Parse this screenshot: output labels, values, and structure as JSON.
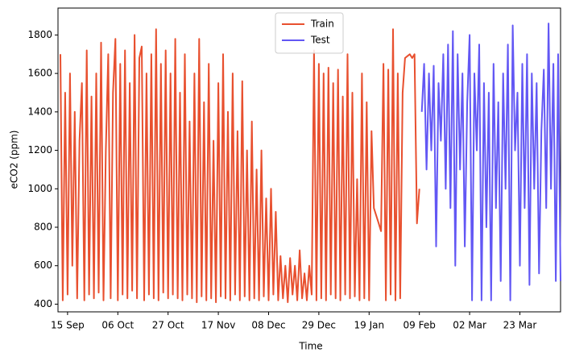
{
  "chart_data": {
    "type": "line",
    "xlabel": "Time",
    "ylabel": "eCO2 (ppm)",
    "xlim": [
      "11 Sep",
      "09 Apr"
    ],
    "xticks": [
      "15 Sep",
      "06 Oct",
      "27 Oct",
      "17 Nov",
      "08 Dec",
      "29 Dec",
      "19 Jan",
      "09 Feb",
      "02 Mar",
      "23 Mar"
    ],
    "ylim": [
      360,
      1940
    ],
    "yticks": [
      400,
      600,
      800,
      1000,
      1200,
      1400,
      1600,
      1800
    ],
    "grid": false,
    "legend": "upper center",
    "series": [
      {
        "name": "Train",
        "color": "#e8502f",
        "x": [
          "12 Sep",
          "13 Sep",
          "14 Sep",
          "15 Sep",
          "16 Sep",
          "17 Sep",
          "18 Sep",
          "19 Sep",
          "20 Sep",
          "21 Sep",
          "22 Sep",
          "23 Sep",
          "24 Sep",
          "25 Sep",
          "26 Sep",
          "27 Sep",
          "28 Sep",
          "29 Sep",
          "30 Sep",
          "01 Oct",
          "02 Oct",
          "03 Oct",
          "04 Oct",
          "05 Oct",
          "06 Oct",
          "07 Oct",
          "08 Oct",
          "09 Oct",
          "10 Oct",
          "11 Oct",
          "12 Oct",
          "13 Oct",
          "14 Oct",
          "15 Oct",
          "16 Oct",
          "17 Oct",
          "18 Oct",
          "19 Oct",
          "20 Oct",
          "21 Oct",
          "22 Oct",
          "23 Oct",
          "24 Oct",
          "25 Oct",
          "26 Oct",
          "27 Oct",
          "28 Oct",
          "29 Oct",
          "30 Oct",
          "31 Oct",
          "01 Nov",
          "02 Nov",
          "03 Nov",
          "04 Nov",
          "05 Nov",
          "06 Nov",
          "07 Nov",
          "08 Nov",
          "09 Nov",
          "10 Nov",
          "11 Nov",
          "12 Nov",
          "13 Nov",
          "14 Nov",
          "15 Nov",
          "16 Nov",
          "17 Nov",
          "18 Nov",
          "19 Nov",
          "20 Nov",
          "21 Nov",
          "22 Nov",
          "23 Nov",
          "24 Nov",
          "25 Nov",
          "26 Nov",
          "27 Nov",
          "28 Nov",
          "29 Nov",
          "30 Nov",
          "01 Dec",
          "02 Dec",
          "03 Dec",
          "04 Dec",
          "05 Dec",
          "06 Dec",
          "07 Dec",
          "08 Dec",
          "09 Dec",
          "10 Dec",
          "11 Dec",
          "12 Dec",
          "13 Dec",
          "14 Dec",
          "15 Dec",
          "16 Dec",
          "17 Dec",
          "18 Dec",
          "19 Dec",
          "20 Dec",
          "21 Dec",
          "22 Dec",
          "23 Dec",
          "24 Dec",
          "25 Dec",
          "26 Dec",
          "27 Dec",
          "28 Dec",
          "29 Dec",
          "30 Dec",
          "31 Dec",
          "01 Jan",
          "02 Jan",
          "03 Jan",
          "04 Jan",
          "05 Jan",
          "06 Jan",
          "07 Jan",
          "08 Jan",
          "09 Jan",
          "10 Jan",
          "11 Jan",
          "12 Jan",
          "13 Jan",
          "14 Jan",
          "15 Jan",
          "16 Jan",
          "17 Jan",
          "18 Jan",
          "19 Jan",
          "20 Jan",
          "21 Jan",
          "22 Jan",
          "23 Jan",
          "24 Jan",
          "25 Jan",
          "26 Jan",
          "27 Jan",
          "28 Jan",
          "29 Jan",
          "30 Jan",
          "31 Jan",
          "01 Feb",
          "02 Feb",
          "03 Feb",
          "04 Feb",
          "05 Feb",
          "06 Feb",
          "07 Feb",
          "08 Feb",
          "09 Feb"
        ],
        "values": [
          1700,
          420,
          1500,
          450,
          1600,
          600,
          1400,
          430,
          1250,
          1550,
          420,
          1720,
          450,
          1480,
          430,
          1600,
          460,
          1760,
          420,
          1200,
          1700,
          430,
          1500,
          1780,
          420,
          1650,
          450,
          1720,
          430,
          1550,
          470,
          1800,
          430,
          1680,
          1740,
          420,
          1600,
          450,
          1700,
          430,
          1830,
          420,
          1650,
          460,
          1720,
          430,
          1600,
          450,
          1780,
          430,
          1500,
          420,
          1700,
          450,
          1350,
          430,
          1600,
          410,
          1780,
          440,
          1450,
          420,
          1650,
          430,
          1250,
          410,
          1550,
          440,
          1700,
          430,
          1400,
          420,
          1600,
          450,
          1300,
          420,
          1560,
          440,
          1200,
          420,
          1350,
          430,
          1100,
          420,
          1200,
          440,
          950,
          420,
          1000,
          450,
          880,
          420,
          650,
          430,
          600,
          410,
          640,
          450,
          600,
          420,
          680,
          430,
          560,
          420,
          600,
          450,
          1720,
          420,
          1650,
          430,
          1600,
          420,
          1630,
          450,
          1550,
          430,
          1620,
          420,
          1480,
          450,
          1700,
          430,
          1500,
          440,
          1050,
          420,
          1600,
          430,
          1450,
          420,
          1300,
          900,
          860,
          820,
          780,
          1650,
          420,
          1620,
          450,
          1830,
          420,
          1600,
          430,
          1500,
          1680,
          1690,
          1700,
          1680,
          1700,
          820,
          1000
        ]
      },
      {
        "name": "Test",
        "color": "#6257f4",
        "x": [
          "10 Feb",
          "11 Feb",
          "12 Feb",
          "13 Feb",
          "14 Feb",
          "15 Feb",
          "16 Feb",
          "17 Feb",
          "18 Feb",
          "19 Feb",
          "20 Feb",
          "21 Feb",
          "22 Feb",
          "23 Feb",
          "24 Feb",
          "25 Feb",
          "26 Feb",
          "27 Feb",
          "28 Feb",
          "01 Mar",
          "02 Mar",
          "03 Mar",
          "04 Mar",
          "05 Mar",
          "06 Mar",
          "07 Mar",
          "08 Mar",
          "09 Mar",
          "10 Mar",
          "11 Mar",
          "12 Mar",
          "13 Mar",
          "14 Mar",
          "15 Mar",
          "16 Mar",
          "17 Mar",
          "18 Mar",
          "19 Mar",
          "20 Mar",
          "21 Mar",
          "22 Mar",
          "23 Mar",
          "24 Mar",
          "25 Mar",
          "26 Mar",
          "27 Mar",
          "28 Mar",
          "29 Mar",
          "30 Mar",
          "31 Mar",
          "01 Apr",
          "02 Apr",
          "03 Apr",
          "04 Apr",
          "05 Apr",
          "06 Apr",
          "07 Apr",
          "08 Apr",
          "09 Apr"
        ],
        "values": [
          1400,
          1650,
          1100,
          1600,
          1200,
          1640,
          700,
          1550,
          1250,
          1700,
          1000,
          1750,
          900,
          1820,
          600,
          1700,
          1100,
          1600,
          700,
          1450,
          1800,
          420,
          1600,
          1200,
          1750,
          420,
          1550,
          800,
          1500,
          420,
          1650,
          900,
          1450,
          520,
          1600,
          1000,
          1750,
          420,
          1850,
          1200,
          1500,
          600,
          1650,
          900,
          1700,
          500,
          1600,
          1000,
          1550,
          560,
          1300,
          1620,
          900,
          1860,
          1000,
          1650,
          520,
          1700,
          520
        ]
      }
    ]
  }
}
